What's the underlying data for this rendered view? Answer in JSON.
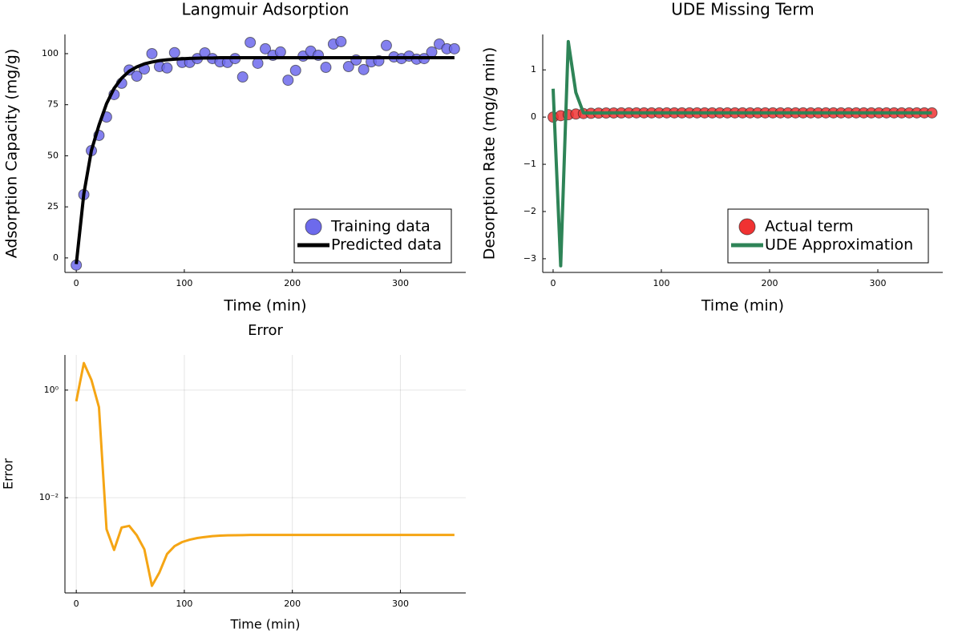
{
  "chart_data": [
    {
      "type": "combo",
      "title": "Langmuir Adsorption",
      "xlabel": "Time (min)",
      "ylabel": "Adsorption Capacity (mg/g)",
      "x": [
        0,
        7,
        14,
        21,
        28,
        35,
        42,
        49,
        56,
        63,
        70,
        77,
        84,
        91,
        98,
        105,
        112,
        119,
        126,
        133,
        140,
        147,
        154,
        161,
        168,
        175,
        182,
        189,
        196,
        203,
        210,
        217,
        224,
        231,
        238,
        245,
        252,
        259,
        266,
        273,
        280,
        287,
        294,
        301,
        308,
        315,
        322,
        329,
        336,
        343,
        350
      ],
      "series": [
        {
          "name": "Training data",
          "type": "scatter",
          "color": "#6d6aec",
          "values": [
            -3.5,
            31,
            52.5,
            60,
            69,
            80,
            85.5,
            92,
            89,
            92.5,
            100,
            93.7,
            93,
            100.5,
            95.7,
            95.7,
            97.6,
            100.4,
            97.6,
            96,
            95.7,
            97.6,
            88.6,
            105.5,
            95.3,
            102.4,
            99.2,
            100.8,
            87,
            91.8,
            98.8,
            101.2,
            99.2,
            93.3,
            104.7,
            105.9,
            93.7,
            96.9,
            92.2,
            96,
            96.5,
            104,
            98.4,
            97.6,
            98.8,
            97.3,
            97.6,
            100.8,
            104.7,
            102.4,
            102.4
          ]
        },
        {
          "name": "Predicted data",
          "type": "line",
          "color": "#000000",
          "values": [
            -3,
            31.4,
            52.6,
            65,
            75.5,
            83,
            88,
            91.4,
            93.5,
            95,
            95.9,
            96.6,
            97,
            97.3,
            97.5,
            97.7,
            97.8,
            97.9,
            97.9,
            98,
            98,
            98,
            98,
            98,
            98,
            98,
            98,
            98,
            98,
            98,
            98,
            98,
            98,
            98,
            98,
            98,
            98,
            98,
            98,
            98,
            98,
            98,
            98,
            98,
            98,
            98,
            98,
            98,
            98,
            98,
            98
          ]
        }
      ],
      "xlim": [
        -10.5,
        360.5
      ],
      "ylim": [
        -7.1,
        109.4
      ],
      "xticks": [
        0,
        100,
        200,
        300
      ],
      "yticks": [
        0,
        25,
        50,
        75,
        100
      ],
      "grid": false,
      "legend": "bottom right"
    },
    {
      "type": "combo",
      "title": "UDE Missing Term",
      "xlabel": "Time (min)",
      "ylabel": "Desorption Rate (mg/g min)",
      "x": [
        0,
        7,
        14,
        21,
        28,
        35,
        42,
        49,
        56,
        63,
        70,
        77,
        84,
        91,
        98,
        105,
        112,
        119,
        126,
        133,
        140,
        147,
        154,
        161,
        168,
        175,
        182,
        189,
        196,
        203,
        210,
        217,
        224,
        231,
        238,
        245,
        252,
        259,
        266,
        273,
        280,
        287,
        294,
        301,
        308,
        315,
        322,
        329,
        336,
        343,
        350
      ],
      "series": [
        {
          "name": "Actual term",
          "type": "scatter",
          "color": "#f03232",
          "values": [
            0,
            0.03,
            0.05,
            0.065,
            0.075,
            0.08,
            0.085,
            0.087,
            0.088,
            0.089,
            0.09,
            0.09,
            0.09,
            0.09,
            0.09,
            0.09,
            0.09,
            0.09,
            0.09,
            0.09,
            0.09,
            0.09,
            0.09,
            0.09,
            0.09,
            0.09,
            0.09,
            0.09,
            0.09,
            0.09,
            0.09,
            0.09,
            0.09,
            0.09,
            0.09,
            0.09,
            0.09,
            0.09,
            0.09,
            0.09,
            0.09,
            0.09,
            0.09,
            0.09,
            0.09,
            0.09,
            0.09,
            0.09,
            0.09,
            0.09,
            0.09
          ]
        },
        {
          "name": "UDE Approximation",
          "type": "line",
          "color": "#2e8457",
          "values": [
            0.6,
            -3.15,
            1.6,
            0.52,
            0.09,
            0.085,
            0.087,
            0.088,
            0.089,
            0.09,
            0.09,
            0.09,
            0.09,
            0.09,
            0.09,
            0.09,
            0.09,
            0.09,
            0.09,
            0.09,
            0.09,
            0.09,
            0.09,
            0.09,
            0.09,
            0.09,
            0.09,
            0.09,
            0.09,
            0.09,
            0.09,
            0.09,
            0.09,
            0.09,
            0.09,
            0.09,
            0.09,
            0.09,
            0.09,
            0.09,
            0.09,
            0.09,
            0.09,
            0.09,
            0.09,
            0.09,
            0.09,
            0.09,
            0.09,
            0.09,
            0.09
          ]
        }
      ],
      "xlim": [
        -9.6,
        360
      ],
      "ylim": [
        -3.29,
        1.75
      ],
      "xticks": [
        0,
        100,
        200,
        300
      ],
      "yticks": [
        {
          "value": -3,
          "label": "−3"
        },
        {
          "value": -2,
          "label": "−2"
        },
        {
          "value": -1,
          "label": "−1"
        },
        0,
        1
      ],
      "grid": false,
      "legend": "bottom right"
    },
    {
      "type": "line",
      "title": "Error",
      "xlabel": "Time (min)",
      "ylabel": "Error",
      "color": "#f5a514",
      "x": [
        0,
        7,
        14,
        21,
        28,
        35,
        42,
        49,
        56,
        63,
        70,
        77,
        84,
        91,
        98,
        105,
        112,
        119,
        126,
        133,
        140,
        147,
        154,
        161,
        168,
        175,
        182,
        189,
        196,
        203,
        210,
        217,
        224,
        231,
        238,
        245,
        252,
        259,
        266,
        273,
        280,
        287,
        294,
        301,
        308,
        315,
        322,
        329,
        336,
        343,
        350
      ],
      "values": [
        0.62,
        3.18,
        1.55,
        0.48,
        0.0026,
        0.00107,
        0.0028,
        0.003,
        0.002,
        0.0011,
        0.00023,
        0.00041,
        0.0009,
        0.00126,
        0.0015,
        0.00166,
        0.00178,
        0.00186,
        0.00193,
        0.00197,
        0.002,
        0.00201,
        0.00202,
        0.00203,
        0.00203,
        0.00203,
        0.00203,
        0.00203,
        0.00203,
        0.00203,
        0.00203,
        0.00203,
        0.00203,
        0.00203,
        0.00203,
        0.00203,
        0.00203,
        0.00203,
        0.00203,
        0.00203,
        0.00203,
        0.00203,
        0.00203,
        0.00203,
        0.00203,
        0.00203,
        0.00203,
        0.00203,
        0.00203,
        0.00203,
        0.00203
      ],
      "xlim": [
        -10.5,
        360.5
      ],
      "ylim": [
        0.00017,
        4.5
      ],
      "xticks": [
        0,
        100,
        200,
        300
      ],
      "yticks": [
        {
          "value": 0.01,
          "label": "10⁻²"
        },
        {
          "value": 1,
          "label": "10⁰"
        }
      ],
      "log_scale": true,
      "grid": true
    }
  ]
}
